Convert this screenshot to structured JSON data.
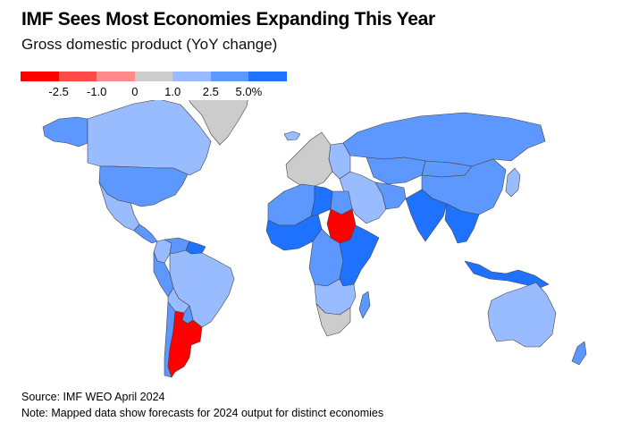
{
  "header": {
    "title": "IMF Sees Most Economies Expanding This Year",
    "subtitle": "Gross domestic product (YoY change)"
  },
  "legend": {
    "bins": [
      "#ff0000",
      "#ff4a4a",
      "#ff8a8a",
      "#cccccc",
      "#99bbff",
      "#5c98ff",
      "#1f72ff"
    ],
    "ticks": [
      "-2.5",
      "-1.0",
      "0",
      "1.0",
      "2.5",
      "5.0%"
    ]
  },
  "map": {
    "colors": {
      "strong_growth": "#1f72ff",
      "moderate_growth": "#5c98ff",
      "slight_growth": "#99bbff",
      "flat_or_no_data": "#cccccc",
      "mild_decline": "#ff8a8a",
      "strong_decline": "#ff0000",
      "border": "#444444"
    },
    "regions": [
      {
        "name": "Greenland",
        "category": "no_data"
      },
      {
        "name": "Canada",
        "category": "slight_growth"
      },
      {
        "name": "Alaska",
        "category": "moderate_growth"
      },
      {
        "name": "United States",
        "category": "moderate_growth"
      },
      {
        "name": "Mexico",
        "category": "slight_growth"
      },
      {
        "name": "Central America",
        "category": "moderate_growth"
      },
      {
        "name": "Colombia",
        "category": "slight_growth"
      },
      {
        "name": "Venezuela",
        "category": "moderate_growth"
      },
      {
        "name": "Guianas",
        "category": "strong_growth"
      },
      {
        "name": "Brazil",
        "category": "slight_growth"
      },
      {
        "name": "Peru",
        "category": "moderate_growth"
      },
      {
        "name": "Bolivia",
        "category": "slight_growth"
      },
      {
        "name": "Paraguay",
        "category": "moderate_growth"
      },
      {
        "name": "Chile",
        "category": "moderate_growth"
      },
      {
        "name": "Argentina",
        "category": "strong_decline"
      },
      {
        "name": "Iceland",
        "category": "slight_growth"
      },
      {
        "name": "Western Europe",
        "category": "no_data"
      },
      {
        "name": "Eastern Europe",
        "category": "slight_growth"
      },
      {
        "name": "Russia",
        "category": "moderate_growth"
      },
      {
        "name": "Kazakhstan",
        "category": "moderate_growth"
      },
      {
        "name": "Mongolia",
        "category": "moderate_growth"
      },
      {
        "name": "China",
        "category": "moderate_growth"
      },
      {
        "name": "Middle East",
        "category": "slight_growth"
      },
      {
        "name": "Iran",
        "category": "moderate_growth"
      },
      {
        "name": "India",
        "category": "strong_growth"
      },
      {
        "name": "Southeast Asia",
        "category": "strong_growth"
      },
      {
        "name": "Indonesia",
        "category": "strong_growth"
      },
      {
        "name": "Japan",
        "category": "slight_growth"
      },
      {
        "name": "North Africa",
        "category": "moderate_growth"
      },
      {
        "name": "Libya",
        "category": "strong_growth"
      },
      {
        "name": "Egypt",
        "category": "moderate_growth"
      },
      {
        "name": "Sudan",
        "category": "strong_decline"
      },
      {
        "name": "West Africa",
        "category": "strong_growth"
      },
      {
        "name": "Central Africa",
        "category": "moderate_growth"
      },
      {
        "name": "East Africa",
        "category": "strong_growth"
      },
      {
        "name": "Southern Africa",
        "category": "slight_growth"
      },
      {
        "name": "South Africa",
        "category": "no_data"
      },
      {
        "name": "Madagascar",
        "category": "moderate_growth"
      },
      {
        "name": "Australia",
        "category": "slight_growth"
      },
      {
        "name": "New Zealand",
        "category": "moderate_growth"
      }
    ]
  },
  "footer": {
    "source": "Source: IMF WEO April 2024",
    "note": "Note: Mapped data show forecasts for 2024 output for distinct economies"
  }
}
